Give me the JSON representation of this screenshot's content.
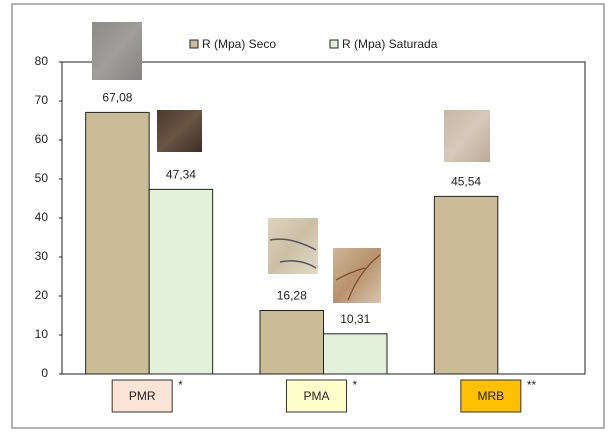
{
  "chart_data": {
    "type": "bar",
    "categories": [
      "PMR",
      "PMA",
      "MRB"
    ],
    "category_colors": [
      "#fbe3d6",
      "#ffffcc",
      "#ffc000"
    ],
    "annotations": [
      "*",
      "*",
      "**"
    ],
    "series": [
      {
        "name": "R (Mpa) Seco",
        "color": "#c9bc96",
        "values": [
          67.08,
          16.28,
          45.54
        ],
        "value_labels": [
          "67,08",
          "16,28",
          "45,54"
        ]
      },
      {
        "name": "R (Mpa) Saturada",
        "color": "#e2efd9",
        "values": [
          47.34,
          10.31,
          null
        ],
        "value_labels": [
          "47,34",
          "10,31",
          null
        ]
      }
    ],
    "ylim": [
      0,
      80
    ],
    "yticks": [
      0,
      10,
      20,
      30,
      40,
      50,
      60,
      70,
      80
    ],
    "grid": false
  }
}
